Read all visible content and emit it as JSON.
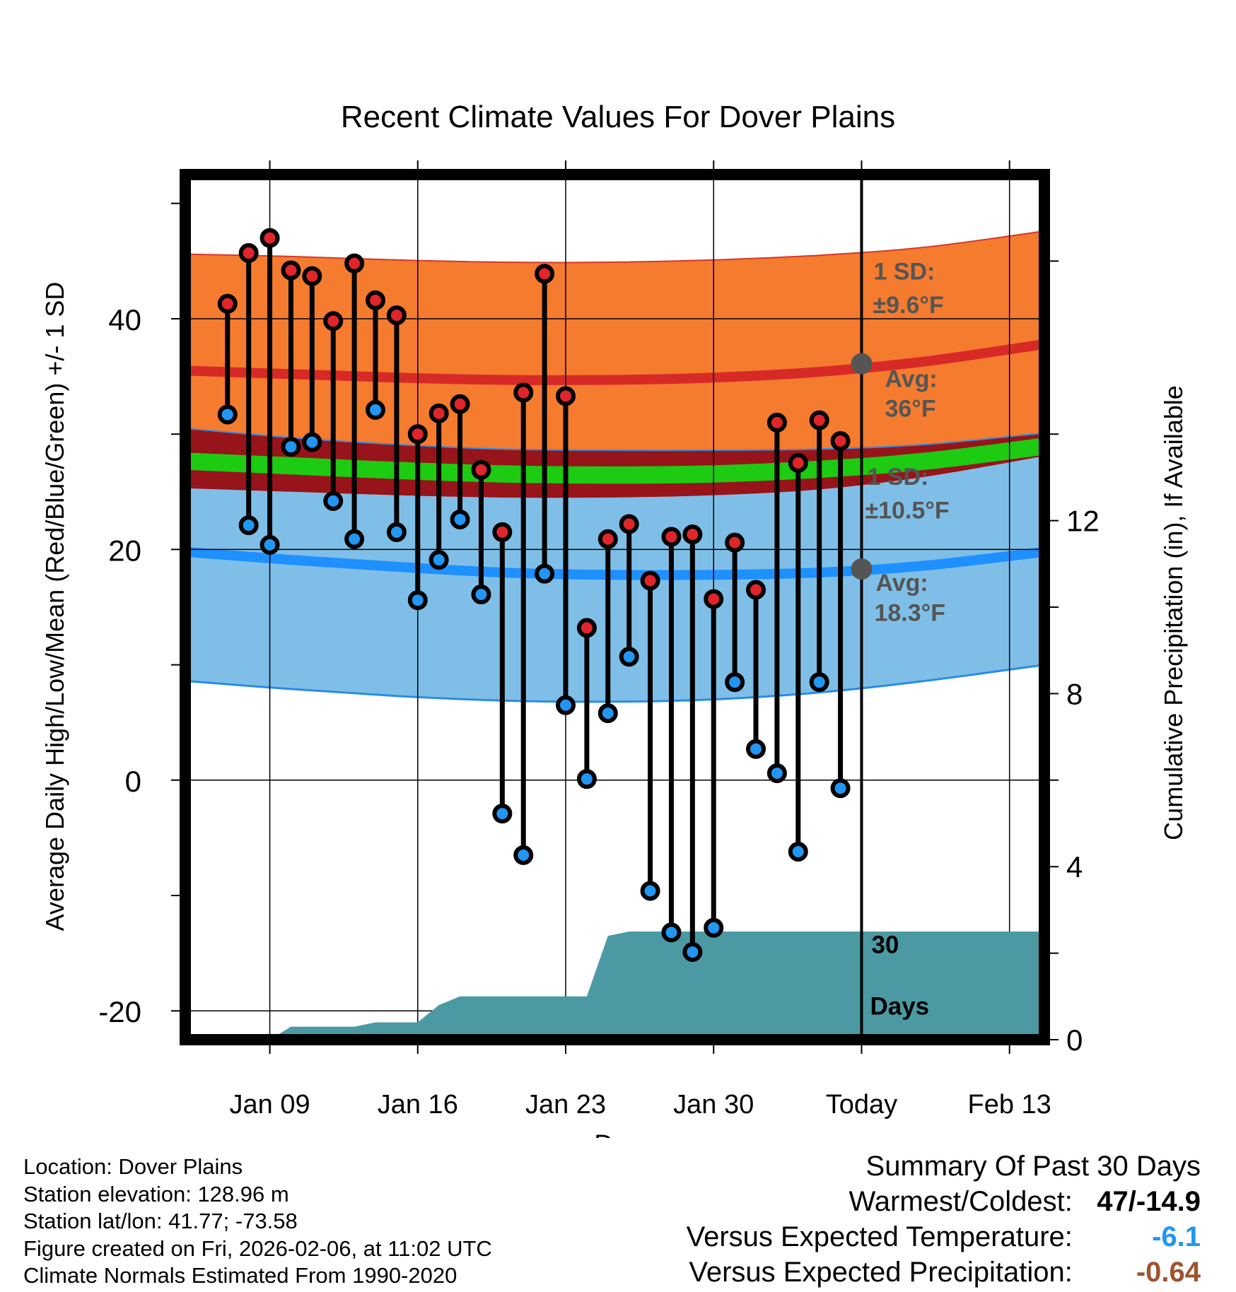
{
  "chart_data": {
    "type": "line",
    "title": "Recent Climate Values For Dover Plains",
    "xlabel": "Day",
    "ylabel_left": "Average Daily High/Low/Mean (Red/Blue/Green) +/- 1 SD",
    "ylabel_right": "Cumulative Precipitation (in), If Available",
    "x_range": [
      5.0,
      45.65
    ],
    "ylim_left": [
      -22.5,
      52.5
    ],
    "ylim_right": [
      0,
      20
    ],
    "x_ticks": [
      {
        "x": 9,
        "label": "Jan 09"
      },
      {
        "x": 16,
        "label": "Jan 16"
      },
      {
        "x": 23,
        "label": "Jan 23"
      },
      {
        "x": 30,
        "label": "Jan 30"
      },
      {
        "x": 37,
        "label": "Today"
      },
      {
        "x": 44,
        "label": "Feb 13"
      }
    ],
    "y_ticks_left": [
      {
        "v": 40,
        "label": "40"
      },
      {
        "v": 20,
        "label": "20"
      },
      {
        "v": 0,
        "label": "0"
      },
      {
        "v": -20,
        "label": "-20"
      }
    ],
    "y_minor_left": [
      50,
      30,
      10,
      -10
    ],
    "y_ticks_right": [
      {
        "v": 12,
        "label": "12"
      },
      {
        "v": 8,
        "label": "8"
      },
      {
        "v": 4,
        "label": "4"
      },
      {
        "v": 0,
        "label": "0"
      }
    ],
    "y_minor_right": [
      18,
      14,
      10,
      6,
      2
    ],
    "today_x": 37,
    "normals": {
      "x": [
        5,
        10,
        15,
        20,
        25,
        30,
        35,
        40,
        45.65
      ],
      "high_avg": [
        35.5,
        35.2,
        34.9,
        34.7,
        34.7,
        34.9,
        35.4,
        36.3,
        37.8
      ],
      "high_upper": [
        45.6,
        45.4,
        45.1,
        44.9,
        44.9,
        45.1,
        45.5,
        46.2,
        47.6
      ],
      "high_lower": [
        30.5,
        29.7,
        29.1,
        28.7,
        28.6,
        28.6,
        28.7,
        29.1,
        30.1
      ],
      "mean_avg": [
        27.6,
        27.2,
        26.8,
        26.5,
        26.4,
        26.5,
        26.9,
        27.6,
        28.9
      ],
      "low_avg": [
        19.8,
        19.1,
        18.5,
        18.0,
        17.8,
        17.8,
        18.0,
        18.6,
        19.8
      ],
      "low_upper": [
        25.3,
        25.0,
        24.7,
        24.5,
        24.5,
        24.7,
        25.2,
        26.3,
        28.1
      ],
      "low_lower": [
        8.6,
        7.9,
        7.3,
        6.9,
        6.8,
        7.0,
        7.6,
        8.6,
        10.0
      ],
      "mean_upper": [
        28.4,
        28.0,
        27.6,
        27.3,
        27.2,
        27.3,
        27.7,
        28.4,
        29.7
      ],
      "mean_lower": [
        26.9,
        26.5,
        26.1,
        25.8,
        25.7,
        25.8,
        26.2,
        26.9,
        28.2
      ]
    },
    "series": [
      {
        "name": "High",
        "color": "#e0252b",
        "values": [
          41.3,
          45.7,
          47.0,
          44.2,
          43.7,
          39.8,
          44.8,
          41.6,
          40.3,
          30.0,
          31.8,
          32.6,
          26.9,
          21.5,
          33.6,
          43.9,
          33.3,
          13.2,
          20.9,
          22.2,
          17.3,
          21.1,
          21.3,
          15.7,
          20.6,
          16.5,
          31.0,
          27.5,
          31.2,
          29.4
        ]
      },
      {
        "name": "Low",
        "color": "#2196f3",
        "values": [
          31.7,
          22.1,
          20.4,
          28.9,
          29.3,
          24.2,
          20.9,
          32.1,
          21.5,
          15.6,
          19.1,
          22.6,
          16.1,
          -2.9,
          -6.5,
          17.9,
          6.5,
          0.1,
          5.8,
          10.7,
          -9.6,
          -13.2,
          -14.9,
          -12.8,
          8.5,
          2.7,
          0.6,
          -6.2,
          8.5,
          -0.7
        ]
      }
    ],
    "days_x": [
      7,
      8,
      9,
      10,
      11,
      12,
      13,
      14,
      15,
      16,
      17,
      18,
      19,
      20,
      21,
      22,
      23,
      24,
      25,
      26,
      27,
      28,
      29,
      30,
      31,
      32,
      33,
      34,
      35,
      36
    ],
    "precipitation": {
      "x": [
        9,
        10,
        12,
        13,
        14,
        15,
        16,
        17,
        18,
        19,
        20,
        21,
        22,
        23,
        24,
        25,
        26,
        27,
        45.65
      ],
      "values": [
        0.0,
        0.3,
        0.3,
        0.3,
        0.4,
        0.4,
        0.4,
        0.8,
        1.0,
        1.0,
        1.0,
        1.0,
        1.0,
        1.0,
        1.0,
        2.4,
        2.5,
        2.5,
        2.5
      ]
    },
    "annotations": {
      "high_sd_label": "1 SD:",
      "high_sd_value": "±9.6°F",
      "high_avg_label": "Avg:",
      "high_avg_value": "36°F",
      "low_sd_label": "1 SD:",
      "low_sd_value": "±10.5°F",
      "low_avg_label": "Avg:",
      "low_avg_value": "18.3°F",
      "days_number": "30",
      "days_label": "Days"
    },
    "colors": {
      "high_band": "#f57b2f",
      "high_avg_line": "#d72a26",
      "overlap_band": "#97141a",
      "mean_band": "#1dcb12",
      "low_band": "#7fbfe7",
      "low_avg_line": "#1e90ff",
      "low_lower_line": "#2a8bea",
      "precip_fill": "#4b9aa3",
      "annotation_text": "#555555"
    }
  },
  "info": {
    "location": "Location: Dover Plains",
    "elevation": "Station elevation: 128.96 m",
    "latlon": "Station lat/lon: 41.77; -73.58",
    "created": "Figure created on Fri, 2026-02-06, at 11:02 UTC",
    "normals": "Climate Normals Estimated From 1990-2020"
  },
  "summary": {
    "title": "Summary Of Past 30 Days",
    "warmest_label": "Warmest/Coldest:",
    "warmest_value": "47/-14.9",
    "temp_label": "Versus Expected Temperature:",
    "temp_value": "-6.1",
    "temp_color": "#2196f3",
    "precip_label": "Versus Expected Precipitation:",
    "precip_value": "-0.64",
    "precip_color": "#a0522d"
  }
}
